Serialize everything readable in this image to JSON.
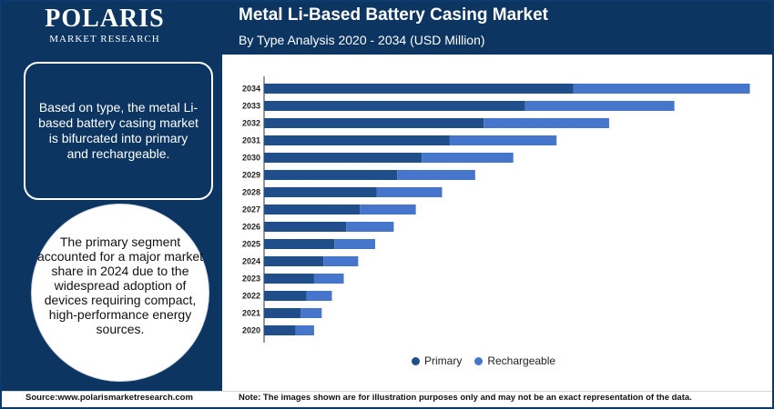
{
  "brand": {
    "name": "POLARIS",
    "sub": "MARKET RESEARCH"
  },
  "header": {
    "title": "Metal Li-Based Battery Casing Market",
    "subtitle": "By Type Analysis 2020 - 2034 (USD Million)"
  },
  "panel": {
    "box_text": "Based on type, the metal Li-based battery casing market is bifurcated into primary and rechargeable.",
    "circle_text": "The primary segment accounted for a major market share in 2024 due to the widespread adoption of devices requiring compact, high-performance energy sources."
  },
  "footer": {
    "source": "Source:www.polarismarketresearch.com",
    "note": "Note: The images shown are for illustration purposes only and may not be an exact representation of the data."
  },
  "colors": {
    "primary": "#1f4e8a",
    "rechargeable": "#4676cc",
    "navy": "#0c3561"
  },
  "chart_data": {
    "type": "bar",
    "orientation": "horizontal",
    "stacked": true,
    "categories": [
      "2034",
      "2033",
      "2032",
      "2031",
      "2030",
      "2029",
      "2028",
      "2027",
      "2026",
      "2025",
      "2024",
      "2023",
      "2022",
      "2021",
      "2020"
    ],
    "series": [
      {
        "name": "Primary",
        "values": [
          36.5,
          30.8,
          25.9,
          21.9,
          18.6,
          15.7,
          13.3,
          11.3,
          9.7,
          8.3,
          7.0,
          5.9,
          5.0,
          4.3,
          3.7
        ]
      },
      {
        "name": "Rechargeable",
        "values": [
          20.8,
          17.6,
          14.8,
          12.6,
          10.8,
          9.2,
          7.7,
          6.6,
          5.6,
          4.8,
          4.1,
          3.5,
          3.0,
          2.5,
          2.2
        ]
      }
    ],
    "xlim": [
      0,
      58
    ],
    "legend_position": "bottom",
    "grid": false
  }
}
